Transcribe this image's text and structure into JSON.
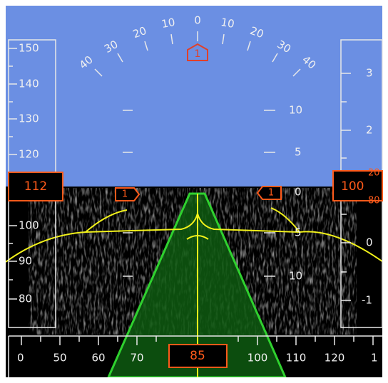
{
  "bank_scale": {
    "labels": [
      "40",
      "30",
      "20",
      "10",
      "0",
      "10",
      "20",
      "30",
      "40"
    ],
    "bug": "1"
  },
  "speed_tape": {
    "labels": [
      "150",
      "140",
      "130",
      "120",
      "100",
      "90",
      "80"
    ],
    "readout": "112"
  },
  "altitude_tape": {
    "labels": [
      "3",
      "2",
      "0",
      "-1"
    ],
    "readout": "100",
    "roll_above": "20",
    "roll_below": "80"
  },
  "pitch_ladder": {
    "labels": [
      "10",
      "5",
      "0",
      "5",
      "10"
    ]
  },
  "flight_director": {
    "left_bug": "1",
    "right_bug": "1"
  },
  "heading_tape": {
    "labels": [
      "0",
      "50",
      "60",
      "70",
      "100",
      "110",
      "120",
      "1"
    ],
    "readout": "85"
  }
}
